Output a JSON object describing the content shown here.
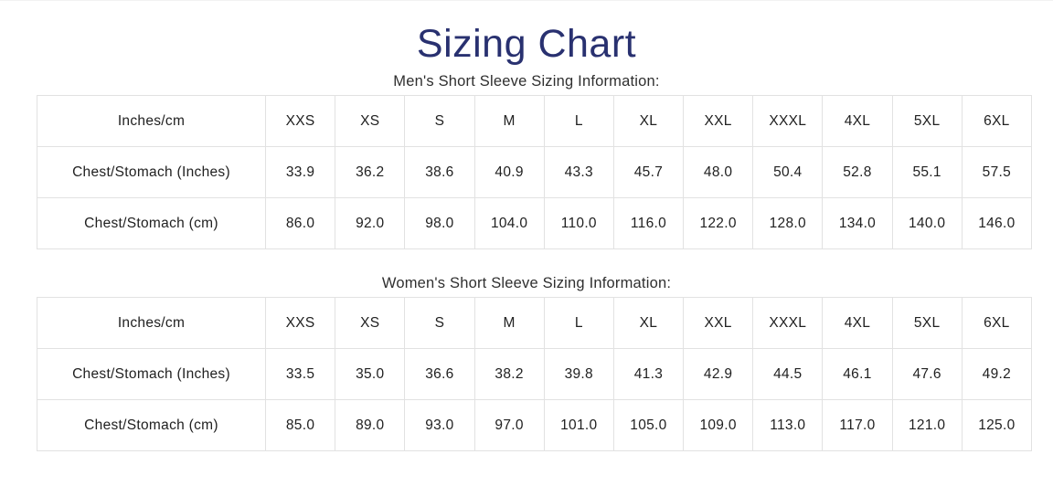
{
  "page": {
    "title": "Sizing Chart",
    "title_color": "#293170",
    "text_color": "#212121",
    "border_color": "#e2e2e2",
    "background_color": "#ffffff"
  },
  "chart_data": [
    {
      "type": "table",
      "title": "Men's Short Sleeve Sizing Information:",
      "columns": [
        "Inches/cm",
        "XXS",
        "XS",
        "S",
        "M",
        "L",
        "XL",
        "XXL",
        "XXXL",
        "4XL",
        "5XL",
        "6XL"
      ],
      "rows": [
        [
          "Chest/Stomach (Inches)",
          "33.9",
          "36.2",
          "38.6",
          "40.9",
          "43.3",
          "45.7",
          "48.0",
          "50.4",
          "52.8",
          "55.1",
          "57.5"
        ],
        [
          "Chest/Stomach (cm)",
          "86.0",
          "92.0",
          "98.0",
          "104.0",
          "110.0",
          "116.0",
          "122.0",
          "128.0",
          "134.0",
          "140.0",
          "146.0"
        ]
      ]
    },
    {
      "type": "table",
      "title": "Women's Short Sleeve Sizing Information:",
      "columns": [
        "Inches/cm",
        "XXS",
        "XS",
        "S",
        "M",
        "L",
        "XL",
        "XXL",
        "XXXL",
        "4XL",
        "5XL",
        "6XL"
      ],
      "rows": [
        [
          "Chest/Stomach (Inches)",
          "33.5",
          "35.0",
          "36.6",
          "38.2",
          "39.8",
          "41.3",
          "42.9",
          "44.5",
          "46.1",
          "47.6",
          "49.2"
        ],
        [
          "Chest/Stomach (cm)",
          "85.0",
          "89.0",
          "93.0",
          "97.0",
          "101.0",
          "105.0",
          "109.0",
          "113.0",
          "117.0",
          "121.0",
          "125.0"
        ]
      ]
    }
  ],
  "tables": [
    {
      "subtitle": "Men's Short Sleeve Sizing Information:",
      "header": [
        "Inches/cm",
        "XXS",
        "XS",
        "S",
        "M",
        "L",
        "XL",
        "XXL",
        "XXXL",
        "4XL",
        "5XL",
        "6XL"
      ],
      "rows": [
        {
          "label": "Chest/Stomach (Inches)",
          "values": [
            "33.9",
            "36.2",
            "38.6",
            "40.9",
            "43.3",
            "45.7",
            "48.0",
            "50.4",
            "52.8",
            "55.1",
            "57.5"
          ]
        },
        {
          "label": "Chest/Stomach (cm)",
          "values": [
            "86.0",
            "92.0",
            "98.0",
            "104.0",
            "110.0",
            "116.0",
            "122.0",
            "128.0",
            "134.0",
            "140.0",
            "146.0"
          ]
        }
      ]
    },
    {
      "subtitle": "Women's Short Sleeve Sizing Information:",
      "header": [
        "Inches/cm",
        "XXS",
        "XS",
        "S",
        "M",
        "L",
        "XL",
        "XXL",
        "XXXL",
        "4XL",
        "5XL",
        "6XL"
      ],
      "rows": [
        {
          "label": "Chest/Stomach (Inches)",
          "values": [
            "33.5",
            "35.0",
            "36.6",
            "38.2",
            "39.8",
            "41.3",
            "42.9",
            "44.5",
            "46.1",
            "47.6",
            "49.2"
          ]
        },
        {
          "label": "Chest/Stomach (cm)",
          "values": [
            "85.0",
            "89.0",
            "93.0",
            "97.0",
            "101.0",
            "105.0",
            "109.0",
            "113.0",
            "117.0",
            "121.0",
            "125.0"
          ]
        }
      ]
    }
  ]
}
